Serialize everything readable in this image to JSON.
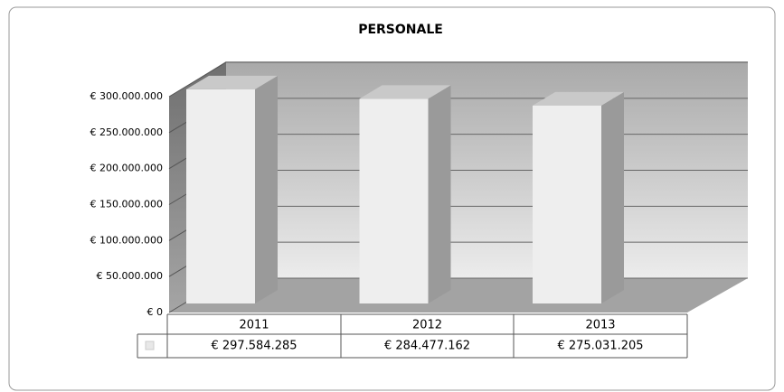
{
  "chart_data": {
    "type": "bar3d",
    "title": "PERSONALE",
    "categories": [
      "2011",
      "2012",
      "2013"
    ],
    "values": [
      297584285,
      284477162,
      275031205
    ],
    "value_labels": [
      "€ 297.584.285",
      "€ 284.477.162",
      "€ 275.031.205"
    ],
    "color": "#eeeeee",
    "ylim": [
      0,
      300000000
    ],
    "yticks": [
      {
        "value": 0,
        "label": "€ 0"
      },
      {
        "value": 50000000,
        "label": "€ 50.000.000"
      },
      {
        "value": 100000000,
        "label": "€ 100.000.000"
      },
      {
        "value": 150000000,
        "label": "€ 150.000.000"
      },
      {
        "value": 200000000,
        "label": "€ 200.000.000"
      },
      {
        "value": 250000000,
        "label": "€ 250.000.000"
      },
      {
        "value": 300000000,
        "label": "€ 300.000.000"
      }
    ],
    "grid": true
  }
}
